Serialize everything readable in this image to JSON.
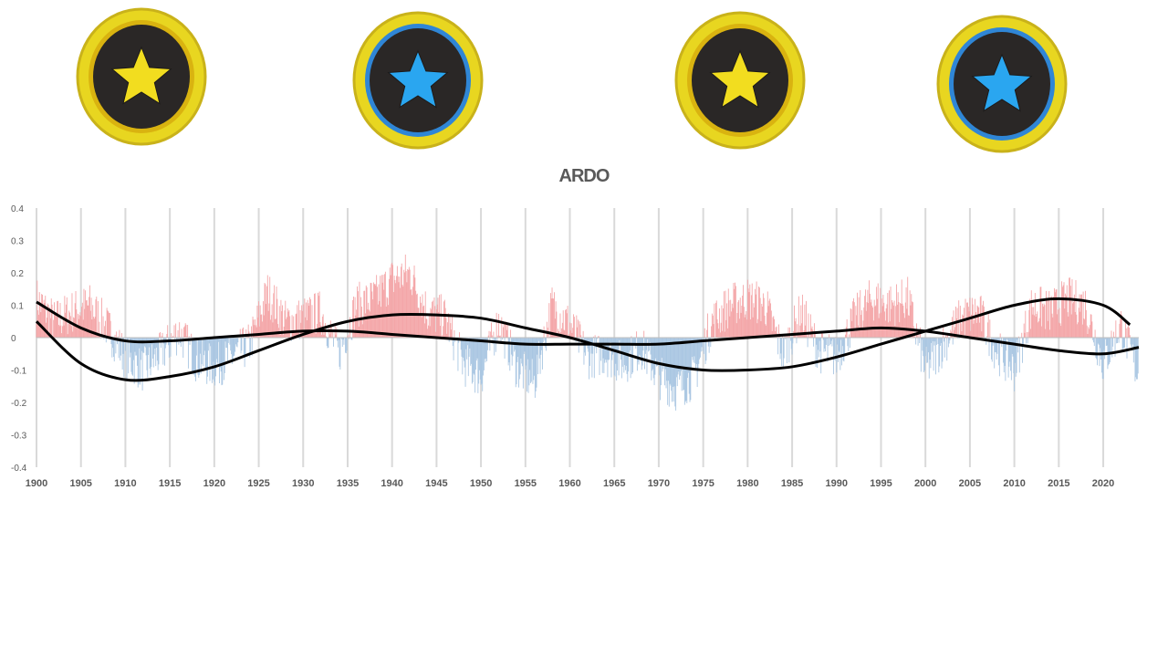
{
  "badges": [
    {
      "name": "gold-star-badge",
      "star_color": "#f2dd1f",
      "rim_color": "#e8d620",
      "accent": "#d9b310"
    },
    {
      "name": "blue-star-badge",
      "star_color": "#2aa6f0",
      "rim_color": "#e8d620",
      "accent": "#2f86d6"
    },
    {
      "name": "gold-star-badge",
      "star_color": "#f2dd1f",
      "rim_color": "#e8d620",
      "accent": "#d9b310"
    },
    {
      "name": "blue-star-badge",
      "star_color": "#2aa6f0",
      "rim_color": "#e8d620",
      "accent": "#2f86d6"
    }
  ],
  "colors": {
    "positive": "#f4a6a8",
    "negative": "#a9c6e2",
    "trend": "#000000",
    "grid": "#d9d9d9",
    "text": "#595959"
  },
  "chart_data": {
    "type": "bar",
    "title": "ARDO",
    "xlabel": "",
    "ylabel": "",
    "xlim": [
      1900,
      2024
    ],
    "ylim": [
      -0.4,
      0.4
    ],
    "grid": "vertical",
    "legend": "none",
    "x_ticks": [
      "1900",
      "1905",
      "1910",
      "1915",
      "1920",
      "1925",
      "1930",
      "1935",
      "1940",
      "1945",
      "1950",
      "1955",
      "1960",
      "1965",
      "1970",
      "1975",
      "1980",
      "1985",
      "1990",
      "1995",
      "2000",
      "2005",
      "2010",
      "2015",
      "2020"
    ],
    "y_ticks": [
      "0.4",
      "0.3",
      "0.2",
      "0.1",
      "0",
      "-0.1",
      "-0.2",
      "-0.3",
      "-0.4"
    ],
    "monthly_series_anchors": {
      "x": [
        1900,
        1902,
        1904,
        1906,
        1908,
        1910,
        1912,
        1914,
        1916,
        1918,
        1920,
        1922,
        1924,
        1926,
        1928,
        1930,
        1932,
        1934,
        1936,
        1938,
        1940,
        1942,
        1944,
        1946,
        1948,
        1950,
        1952,
        1954,
        1956,
        1958,
        1960,
        1962,
        1964,
        1966,
        1968,
        1970,
        1972,
        1974,
        1976,
        1978,
        1980,
        1982,
        1984,
        1986,
        1988,
        1990,
        1992,
        1994,
        1996,
        1998,
        2000,
        2002,
        2004,
        2006,
        2008,
        2010,
        2012,
        2014,
        2016,
        2018,
        2020,
        2022,
        2024
      ],
      "y": [
        0.12,
        0.05,
        0.08,
        0.1,
        0.03,
        -0.06,
        -0.1,
        -0.05,
        0.02,
        -0.07,
        -0.09,
        -0.06,
        -0.02,
        0.14,
        0.05,
        0.06,
        0.08,
        -0.05,
        0.1,
        0.12,
        0.18,
        0.2,
        0.08,
        0.06,
        -0.08,
        -0.12,
        0.05,
        -0.09,
        -0.14,
        0.1,
        0.04,
        -0.06,
        -0.05,
        -0.08,
        -0.03,
        -0.12,
        -0.16,
        -0.12,
        0.05,
        0.1,
        0.12,
        0.1,
        -0.05,
        0.08,
        -0.04,
        -0.06,
        0.06,
        0.12,
        0.1,
        0.12,
        -0.1,
        -0.02,
        0.06,
        0.08,
        -0.04,
        -0.1,
        0.1,
        0.08,
        0.12,
        0.1,
        -0.08,
        0.04,
        -0.12
      ]
    },
    "trend_series": [
      {
        "x": [
          1900,
          1905,
          1910,
          1915,
          1920,
          1925,
          1930,
          1935,
          1940,
          1945,
          1950,
          1955,
          1960,
          1965,
          1970,
          1975,
          1980,
          1985,
          1990,
          1995,
          2000,
          2005,
          2010,
          2015,
          2020,
          2023
        ],
        "y": [
          0.05,
          -0.08,
          -0.13,
          -0.12,
          -0.09,
          -0.04,
          0.01,
          0.05,
          0.07,
          0.07,
          0.06,
          0.03,
          0.0,
          -0.04,
          -0.08,
          -0.1,
          -0.1,
          -0.09,
          -0.06,
          -0.02,
          0.02,
          0.06,
          0.1,
          0.12,
          0.1,
          0.04
        ]
      },
      {
        "x": [
          1900,
          1905,
          1910,
          1915,
          1920,
          1925,
          1930,
          1935,
          1940,
          1945,
          1950,
          1955,
          1960,
          1965,
          1970,
          1975,
          1980,
          1985,
          1990,
          1995,
          2000,
          2005,
          2010,
          2015,
          2020,
          2024
        ],
        "y": [
          0.11,
          0.03,
          -0.01,
          -0.01,
          0.0,
          0.01,
          0.02,
          0.02,
          0.01,
          0.0,
          -0.01,
          -0.02,
          -0.02,
          -0.02,
          -0.02,
          -0.01,
          0.0,
          0.01,
          0.02,
          0.03,
          0.02,
          0.0,
          -0.02,
          -0.04,
          -0.05,
          -0.03
        ]
      }
    ]
  }
}
